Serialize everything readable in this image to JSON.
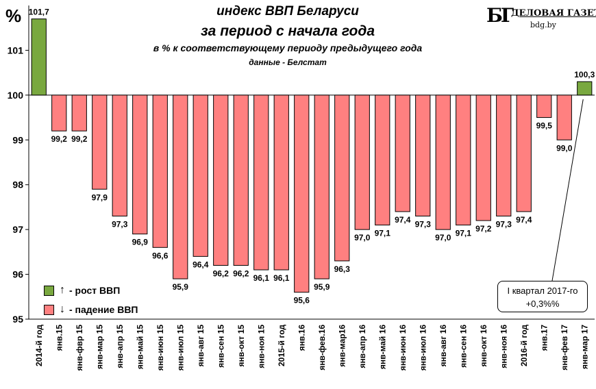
{
  "header": {
    "unit_symbol": "%",
    "title": "индекс ВВП Беларуси",
    "subtitle": "за период с начала года",
    "description": "в % к соответствующему периоду предыдущего года",
    "source": "данные - Белстат"
  },
  "logo": {
    "mark": "БГ",
    "name": "ДЕЛОВАЯ ГАЗЕТА",
    "url": "bdg.by"
  },
  "legend": {
    "growth": "- рост ВВП",
    "decline": "- падение ВВП",
    "growth_arrow": "↑",
    "decline_arrow": "↓"
  },
  "callout": {
    "line1": "I квартал 2017-го",
    "line2": "+0,3%%"
  },
  "colors": {
    "growth": "#79a83f",
    "decline": "#ff8080",
    "grid": "#b0b0b0"
  },
  "chart_data": {
    "type": "bar",
    "baseline": 100,
    "ylim": [
      95,
      102
    ],
    "yticks": [
      95,
      96,
      97,
      98,
      99,
      100,
      101
    ],
    "grid": false,
    "legend_position": "bottom-left",
    "categories": [
      "2014-й год",
      "янв.15",
      "янв-фвр 15",
      "янв-мар 15",
      "янв-апр 15",
      "янв-май 15",
      "янв-июн 15",
      "янв-июл 15",
      "янв-авг 15",
      "янв-сен 15",
      "янв-окт 15",
      "янв-ноя 15",
      "2015-й год",
      "янв.16",
      "янв-фев.16",
      "янв-мар16",
      "янв-апр 16",
      "янв-май 16",
      "янв-июн 16",
      "янв-июл 16",
      "янв-авг 16",
      "янв-сен 16",
      "янв-окт 16",
      "янв-ноя 16",
      "2016-й год",
      "янв.17",
      "янв-фев 17",
      "янв-мар 17"
    ],
    "values": [
      101.7,
      99.2,
      99.2,
      97.9,
      97.3,
      96.9,
      96.6,
      95.9,
      96.4,
      96.2,
      96.2,
      96.1,
      96.1,
      95.6,
      95.9,
      96.3,
      97.0,
      97.1,
      97.4,
      97.3,
      97.0,
      97.1,
      97.2,
      97.3,
      97.4,
      99.5,
      99.0,
      100.3
    ],
    "data_labels": [
      "101,7",
      "99,2",
      "99,2",
      "97,9",
      "97,3",
      "96,9",
      "96,6",
      "95,9",
      "96,4",
      "96,2",
      "96,2",
      "96,1",
      "96,1",
      "95,6",
      "95,9",
      "96,3",
      "97,0",
      "97,1",
      "97,4",
      "97,3",
      "97,0",
      "97,1",
      "97,2",
      "97,3",
      "97,4",
      "99,5",
      "99,0",
      "100,3"
    ]
  }
}
